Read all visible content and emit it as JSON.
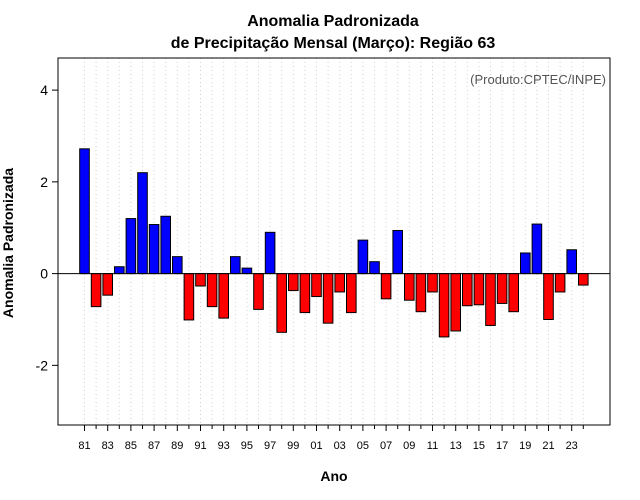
{
  "chart_data": {
    "type": "bar",
    "title": [
      "Anomalia Padronizada",
      "de Precipitação Mensal (Março): Região 63"
    ],
    "credit": "(Produto:CPTEC/INPE)",
    "xlabel": "Ano",
    "ylabel": "Anomalia Padronizada",
    "ylim": [
      -3.3,
      4.7
    ],
    "yticks": [
      -2,
      0,
      2,
      4
    ],
    "ytick_labels": [
      "-2",
      "0",
      "2",
      "4"
    ],
    "xtick_labels": [
      "81",
      "83",
      "85",
      "87",
      "89",
      "91",
      "93",
      "95",
      "97",
      "99",
      "01",
      "03",
      "05",
      "07",
      "09",
      "11",
      "13",
      "15",
      "17",
      "19",
      "21",
      "23"
    ],
    "grid": true,
    "positive_color": "#0000ff",
    "negative_color": "#ff0000",
    "categories": [
      "1981",
      "1982",
      "1983",
      "1984",
      "1985",
      "1986",
      "1987",
      "1988",
      "1989",
      "1990",
      "1991",
      "1992",
      "1993",
      "1994",
      "1995",
      "1996",
      "1997",
      "1998",
      "1999",
      "2000",
      "2001",
      "2002",
      "2003",
      "2004",
      "2005",
      "2006",
      "2007",
      "2008",
      "2009",
      "2010",
      "2011",
      "2012",
      "2013",
      "2014",
      "2015",
      "2016",
      "2017",
      "2018",
      "2019",
      "2020",
      "2021",
      "2022",
      "2023",
      "2024"
    ],
    "values": [
      2.72,
      -0.72,
      -0.47,
      0.15,
      1.2,
      2.2,
      1.07,
      1.25,
      0.37,
      -1.01,
      -0.27,
      -0.72,
      -0.97,
      0.37,
      0.12,
      -0.78,
      0.9,
      -1.28,
      -0.37,
      -0.85,
      -0.5,
      -1.08,
      -0.4,
      -0.85,
      0.73,
      0.26,
      -0.55,
      0.94,
      -0.58,
      -0.83,
      -0.4,
      -1.38,
      -1.25,
      -0.7,
      -0.68,
      -1.13,
      -0.65,
      -0.83,
      0.45,
      1.08,
      -1.0,
      -0.4,
      0.52,
      -0.25
    ]
  }
}
